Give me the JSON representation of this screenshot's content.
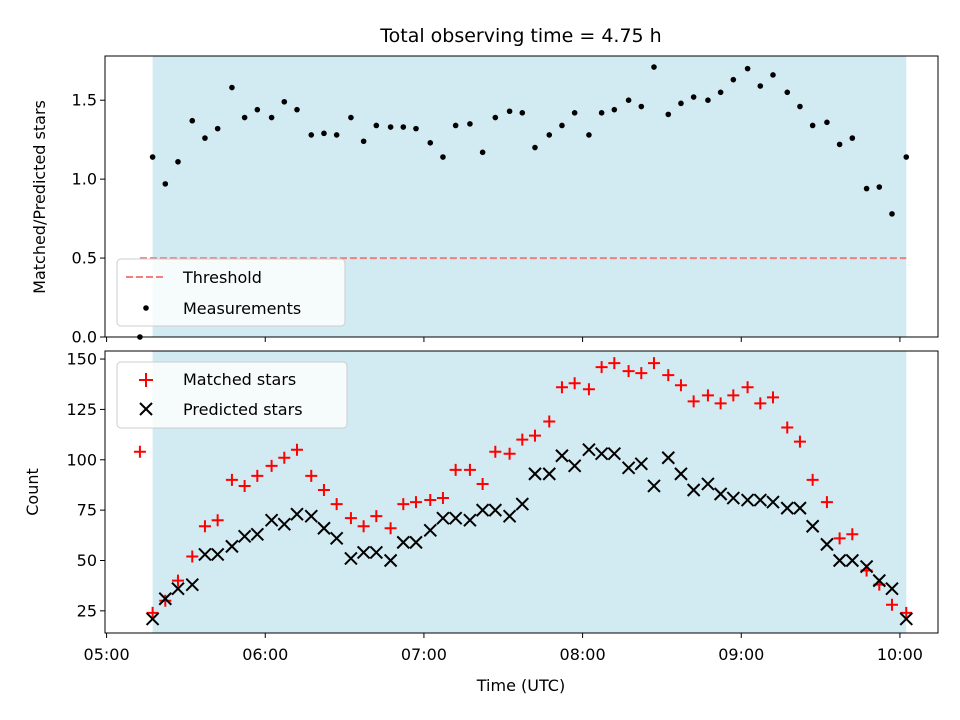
{
  "chart_data": {
    "title": "Total observing time = 4.75 h",
    "xlabel": "Time (UTC)",
    "x_units": "hours UTC",
    "xlim": [
      4.99,
      10.24
    ],
    "xticks": [
      5,
      6,
      7,
      8,
      9,
      10
    ],
    "xtick_labels": [
      "05:00",
      "06:00",
      "07:00",
      "08:00",
      "09:00",
      "10:00"
    ],
    "shaded_interval": [
      5.29,
      10.04
    ],
    "shade_color": "#add8e6",
    "panels": [
      {
        "id": "ratio",
        "type": "scatter",
        "ylabel": "Matched/Predicted stars",
        "ylim": [
          0,
          1.78
        ],
        "yticks": [
          0.0,
          0.5,
          1.0,
          1.5
        ],
        "ytick_labels": [
          "0.0",
          "0.5",
          "1.0",
          "1.5"
        ],
        "threshold": {
          "name": "Threshold",
          "y": 0.5,
          "x_range": [
            5.21,
            10.04
          ],
          "color": "#f08080"
        },
        "series": [
          {
            "name": "Measurements",
            "marker": "dot",
            "color": "#000000",
            "points": [
              [
                5.21,
                0.0
              ],
              [
                5.29,
                1.14
              ],
              [
                5.37,
                0.97
              ],
              [
                5.45,
                1.11
              ],
              [
                5.54,
                1.37
              ],
              [
                5.62,
                1.26
              ],
              [
                5.7,
                1.32
              ],
              [
                5.79,
                1.58
              ],
              [
                5.87,
                1.39
              ],
              [
                5.95,
                1.44
              ],
              [
                6.04,
                1.39
              ],
              [
                6.12,
                1.49
              ],
              [
                6.2,
                1.44
              ],
              [
                6.29,
                1.28
              ],
              [
                6.37,
                1.29
              ],
              [
                6.45,
                1.28
              ],
              [
                6.54,
                1.39
              ],
              [
                6.62,
                1.24
              ],
              [
                6.7,
                1.34
              ],
              [
                6.79,
                1.33
              ],
              [
                6.87,
                1.33
              ],
              [
                6.95,
                1.32
              ],
              [
                7.04,
                1.23
              ],
              [
                7.12,
                1.14
              ],
              [
                7.2,
                1.34
              ],
              [
                7.29,
                1.35
              ],
              [
                7.37,
                1.17
              ],
              [
                7.45,
                1.39
              ],
              [
                7.54,
                1.43
              ],
              [
                7.62,
                1.42
              ],
              [
                7.7,
                1.2
              ],
              [
                7.79,
                1.28
              ],
              [
                7.87,
                1.34
              ],
              [
                7.95,
                1.42
              ],
              [
                8.04,
                1.28
              ],
              [
                8.12,
                1.42
              ],
              [
                8.2,
                1.44
              ],
              [
                8.29,
                1.5
              ],
              [
                8.37,
                1.46
              ],
              [
                8.45,
                1.71
              ],
              [
                8.54,
                1.41
              ],
              [
                8.62,
                1.48
              ],
              [
                8.7,
                1.52
              ],
              [
                8.79,
                1.5
              ],
              [
                8.87,
                1.55
              ],
              [
                8.95,
                1.63
              ],
              [
                9.04,
                1.7
              ],
              [
                9.12,
                1.59
              ],
              [
                9.2,
                1.66
              ],
              [
                9.29,
                1.55
              ],
              [
                9.37,
                1.46
              ],
              [
                9.45,
                1.34
              ],
              [
                9.54,
                1.36
              ],
              [
                9.62,
                1.22
              ],
              [
                9.7,
                1.26
              ],
              [
                9.79,
                0.94
              ],
              [
                9.87,
                0.95
              ],
              [
                9.95,
                0.78
              ],
              [
                10.04,
                1.14
              ]
            ]
          }
        ],
        "legend": {
          "location": "lower-left",
          "entries": [
            "Threshold",
            "Measurements"
          ]
        }
      },
      {
        "id": "counts",
        "type": "scatter",
        "ylabel": "Count",
        "ylim": [
          14,
          154
        ],
        "yticks": [
          25,
          50,
          75,
          100,
          125,
          150
        ],
        "ytick_labels": [
          "25",
          "50",
          "75",
          "100",
          "125",
          "150"
        ],
        "series": [
          {
            "name": "Matched stars",
            "marker": "plus",
            "color": "#ff0000",
            "points": [
              [
                5.21,
                104
              ],
              [
                5.29,
                24
              ],
              [
                5.37,
                30
              ],
              [
                5.45,
                40
              ],
              [
                5.54,
                52
              ],
              [
                5.62,
                67
              ],
              [
                5.7,
                70
              ],
              [
                5.79,
                90
              ],
              [
                5.87,
                87
              ],
              [
                5.95,
                92
              ],
              [
                6.04,
                97
              ],
              [
                6.12,
                101
              ],
              [
                6.2,
                105
              ],
              [
                6.29,
                92
              ],
              [
                6.37,
                85
              ],
              [
                6.45,
                78
              ],
              [
                6.54,
                71
              ],
              [
                6.62,
                67
              ],
              [
                6.7,
                72
              ],
              [
                6.79,
                66
              ],
              [
                6.87,
                78
              ],
              [
                6.95,
                79
              ],
              [
                7.04,
                80
              ],
              [
                7.12,
                81
              ],
              [
                7.2,
                95
              ],
              [
                7.29,
                95
              ],
              [
                7.37,
                88
              ],
              [
                7.45,
                104
              ],
              [
                7.54,
                103
              ],
              [
                7.62,
                110
              ],
              [
                7.7,
                112
              ],
              [
                7.79,
                119
              ],
              [
                7.87,
                136
              ],
              [
                7.95,
                138
              ],
              [
                8.04,
                135
              ],
              [
                8.12,
                146
              ],
              [
                8.2,
                148
              ],
              [
                8.29,
                144
              ],
              [
                8.37,
                143
              ],
              [
                8.45,
                148
              ],
              [
                8.54,
                142
              ],
              [
                8.62,
                137
              ],
              [
                8.7,
                129
              ],
              [
                8.79,
                132
              ],
              [
                8.87,
                128
              ],
              [
                8.95,
                132
              ],
              [
                9.04,
                136
              ],
              [
                9.12,
                128
              ],
              [
                9.2,
                131
              ],
              [
                9.29,
                116
              ],
              [
                9.37,
                109
              ],
              [
                9.45,
                90
              ],
              [
                9.54,
                79
              ],
              [
                9.62,
                61
              ],
              [
                9.7,
                63
              ],
              [
                9.79,
                45
              ],
              [
                9.87,
                38
              ],
              [
                9.95,
                28
              ],
              [
                10.04,
                24
              ]
            ]
          },
          {
            "name": "Predicted stars",
            "marker": "x",
            "color": "#000000",
            "points": [
              [
                5.29,
                21
              ],
              [
                5.37,
                31
              ],
              [
                5.45,
                36
              ],
              [
                5.54,
                38
              ],
              [
                5.62,
                53
              ],
              [
                5.7,
                53
              ],
              [
                5.79,
                57
              ],
              [
                5.87,
                62
              ],
              [
                5.95,
                63
              ],
              [
                6.04,
                70
              ],
              [
                6.12,
                68
              ],
              [
                6.2,
                73
              ],
              [
                6.29,
                72
              ],
              [
                6.37,
                66
              ],
              [
                6.45,
                61
              ],
              [
                6.54,
                51
              ],
              [
                6.62,
                54
              ],
              [
                6.7,
                54
              ],
              [
                6.79,
                50
              ],
              [
                6.87,
                59
              ],
              [
                6.95,
                59
              ],
              [
                7.04,
                65
              ],
              [
                7.12,
                71
              ],
              [
                7.2,
                71
              ],
              [
                7.29,
                70
              ],
              [
                7.37,
                75
              ],
              [
                7.45,
                75
              ],
              [
                7.54,
                72
              ],
              [
                7.62,
                78
              ],
              [
                7.7,
                93
              ],
              [
                7.79,
                93
              ],
              [
                7.87,
                102
              ],
              [
                7.95,
                97
              ],
              [
                8.04,
                105
              ],
              [
                8.12,
                103
              ],
              [
                8.2,
                103
              ],
              [
                8.29,
                96
              ],
              [
                8.37,
                98
              ],
              [
                8.45,
                87
              ],
              [
                8.54,
                101
              ],
              [
                8.62,
                93
              ],
              [
                8.7,
                85
              ],
              [
                8.79,
                88
              ],
              [
                8.87,
                83
              ],
              [
                8.95,
                81
              ],
              [
                9.04,
                80
              ],
              [
                9.12,
                80
              ],
              [
                9.2,
                79
              ],
              [
                9.29,
                76
              ],
              [
                9.37,
                76
              ],
              [
                9.45,
                67
              ],
              [
                9.54,
                58
              ],
              [
                9.62,
                50
              ],
              [
                9.7,
                50
              ],
              [
                9.79,
                47
              ],
              [
                9.87,
                40
              ],
              [
                9.95,
                36
              ],
              [
                10.04,
                21
              ]
            ]
          }
        ],
        "legend": {
          "location": "upper-left",
          "entries": [
            "Matched stars",
            "Predicted stars"
          ]
        }
      }
    ]
  }
}
